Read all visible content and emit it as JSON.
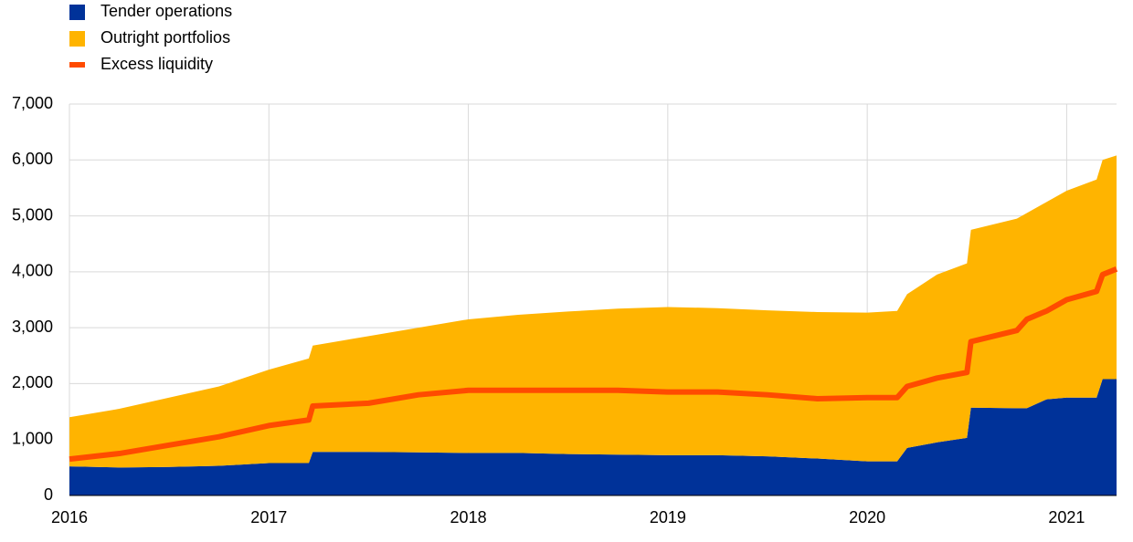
{
  "chart_data": {
    "type": "stacked-area-line",
    "x": [
      2016,
      2016.25,
      2016.5,
      2016.75,
      2017,
      2017.2,
      2017.22,
      2017.5,
      2017.75,
      2018,
      2018.25,
      2018.5,
      2018.75,
      2019,
      2019.25,
      2019.5,
      2019.75,
      2020,
      2020.15,
      2020.2,
      2020.35,
      2020.5,
      2020.52,
      2020.75,
      2020.8,
      2020.9,
      2021,
      2021.15,
      2021.18,
      2021.25
    ],
    "series": [
      {
        "name": "Tender operations",
        "color": "#003299",
        "kind": "area",
        "values": [
          520,
          500,
          510,
          530,
          580,
          580,
          780,
          780,
          770,
          760,
          760,
          740,
          730,
          720,
          720,
          700,
          660,
          610,
          610,
          850,
          950,
          1030,
          1570,
          1560,
          1560,
          1720,
          1750,
          1750,
          2080,
          2080
        ]
      },
      {
        "name": "Outright portfolios",
        "color": "#ffb400",
        "kind": "area",
        "values": [
          880,
          1050,
          1240,
          1420,
          1670,
          1870,
          1900,
          2070,
          2230,
          2390,
          2470,
          2550,
          2610,
          2650,
          2630,
          2610,
          2620,
          2660,
          2690,
          2750,
          3000,
          3120,
          3180,
          3390,
          3490,
          3530,
          3700,
          3900,
          3920,
          4000
        ]
      },
      {
        "name": "Excess liquidity",
        "color": "#ff4b00",
        "kind": "line",
        "values": [
          650,
          750,
          900,
          1050,
          1250,
          1350,
          1600,
          1650,
          1800,
          1880,
          1880,
          1880,
          1880,
          1850,
          1850,
          1800,
          1730,
          1750,
          1750,
          1950,
          2100,
          2200,
          2750,
          2950,
          3150,
          3300,
          3500,
          3650,
          3950,
          4050
        ]
      }
    ],
    "xlim": [
      2016,
      2021.25
    ],
    "xticks": [
      2016,
      2017,
      2018,
      2019,
      2020,
      2021
    ],
    "ylim": [
      0,
      7000
    ],
    "yticks": [
      0,
      {
        "value": 1000,
        "label": "1,000"
      },
      {
        "value": 2000,
        "label": "2,000"
      },
      {
        "value": 3000,
        "label": "3,000"
      },
      {
        "value": 4000,
        "label": "4,000"
      },
      {
        "value": 5000,
        "label": "5,000"
      },
      {
        "value": 6000,
        "label": "6,000"
      },
      {
        "value": 7000,
        "label": "7,000"
      }
    ],
    "grid": true,
    "legend": "top-left"
  }
}
